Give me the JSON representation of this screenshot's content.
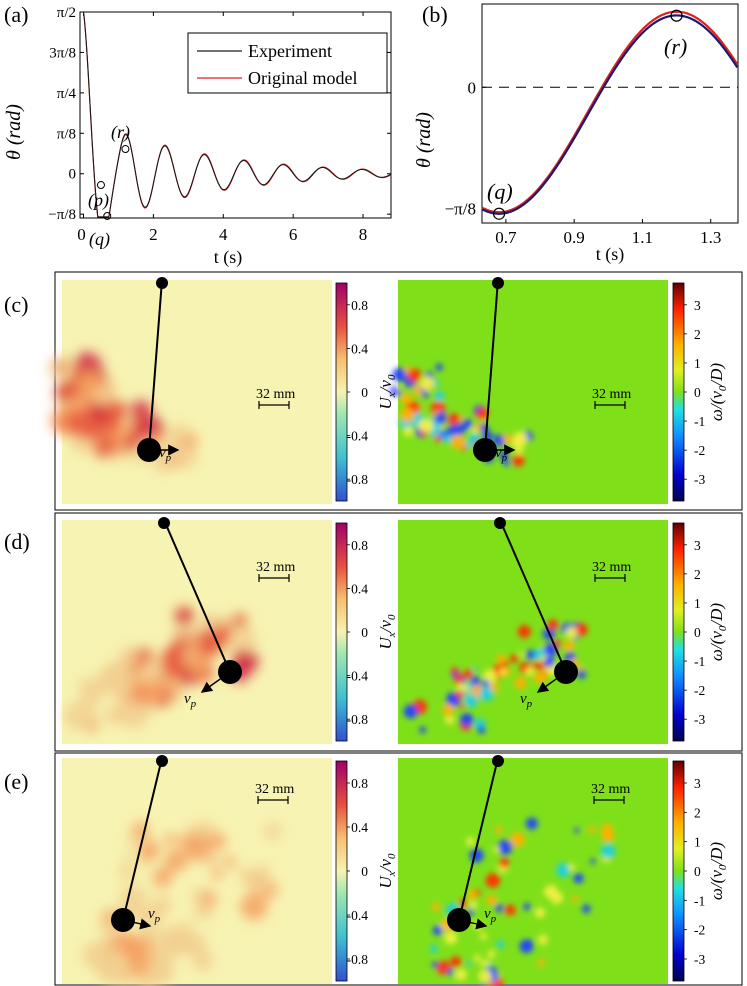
{
  "panels": {
    "a": {
      "label": "(a)",
      "ylabel": "θ (rad)",
      "xlabel": "t (s)",
      "legend": {
        "experiment": "Experiment",
        "model": "Original model"
      },
      "points": {
        "p": "(p)",
        "q": "(q)",
        "r": "(r)"
      }
    },
    "b": {
      "label": "(b)",
      "ylabel": "θ (rad)",
      "xlabel": "t (s)",
      "points": {
        "q": "(q)",
        "r": "(r)"
      }
    },
    "c": {
      "label": "(c)"
    },
    "d": {
      "label": "(d)"
    },
    "e": {
      "label": "(e)"
    }
  },
  "field": {
    "scale_label": "32 mm",
    "velocity_label": "v",
    "velocity_sub": "p",
    "colorbar_u": {
      "label_main": "U",
      "label_sub1": "x",
      "label_slash": "/v",
      "label_sub2": "0",
      "ticks": [
        "0.8",
        "0.4",
        "0",
        "-0.4",
        "-0.8"
      ]
    },
    "colorbar_w": {
      "label": "ω/(v",
      "label_sub": "0",
      "label_end": "/D)",
      "ticks": [
        "3",
        "2",
        "1",
        "0",
        "-1",
        "-2",
        "-3"
      ]
    }
  },
  "colors": {
    "experiment": "#1a1a6e",
    "model": "#e02020",
    "u_background": "#f7f3b2",
    "w_background": "#7fe01a"
  },
  "chart_data": [
    {
      "type": "line",
      "panel": "a",
      "xlabel": "t (s)",
      "ylabel": "θ (rad)",
      "xlim": [
        -0.1,
        8.8
      ],
      "ylim": [
        -0.43,
        1.5708
      ],
      "xticks": [
        0,
        2,
        4,
        6,
        8
      ],
      "yticks": [
        {
          "value": 1.5708,
          "label": "π/2"
        },
        {
          "value": 1.1781,
          "label": "3π/8"
        },
        {
          "value": 0.7854,
          "label": "π/4"
        },
        {
          "value": 0.3927,
          "label": "π/8"
        },
        {
          "value": 0,
          "label": "0"
        },
        {
          "value": -0.3927,
          "label": "−π/8"
        }
      ],
      "xtick_labels": [
        "0",
        "2",
        "4",
        "6",
        "8"
      ],
      "series": [
        {
          "name": "Experiment",
          "model": {
            "theta0": 1.5708,
            "t0": 0,
            "tau": 0.55,
            "omega": 5.57,
            "amp_late": 0.3927,
            "decay": 0.33,
            "t_switch": 1.2
          }
        },
        {
          "name": "Original model",
          "model": {
            "theta0": 1.5708,
            "t0": 0,
            "tau": 0.55,
            "omega": 5.55,
            "amp_late": 0.4,
            "decay": 0.32,
            "t_switch": 1.2
          }
        }
      ],
      "markers": [
        {
          "label": "(p)",
          "t": 0.5,
          "theta": -0.11
        },
        {
          "label": "(q)",
          "t": 0.68,
          "theta": -0.41
        },
        {
          "label": "(r)",
          "t": 1.2,
          "theta": 0.24
        }
      ]
    },
    {
      "type": "line",
      "panel": "b",
      "xlabel": "t (s)",
      "ylabel": "θ (rad)",
      "xlim": [
        0.63,
        1.38
      ],
      "ylim": [
        -0.44,
        0.27
      ],
      "xticks": [
        0.7,
        0.9,
        1.1,
        1.3
      ],
      "xtick_labels": [
        "0.7",
        "0.9",
        "1.1",
        "1.3"
      ],
      "yticks": [
        {
          "value": 0,
          "label": "0"
        },
        {
          "value": -0.3927,
          "label": "−π/8"
        }
      ],
      "series": [
        {
          "name": "Experiment",
          "min_t": 0.68,
          "min_theta": -0.41,
          "max_t": 1.2,
          "max_theta": 0.233
        },
        {
          "name": "Original model",
          "min_t": 0.68,
          "min_theta": -0.405,
          "max_t": 1.2,
          "max_theta": 0.245
        }
      ],
      "markers": [
        {
          "label": "(q)",
          "t": 0.68,
          "theta": -0.41
        },
        {
          "label": "(r)",
          "t": 1.2,
          "theta": 0.232
        }
      ]
    }
  ]
}
